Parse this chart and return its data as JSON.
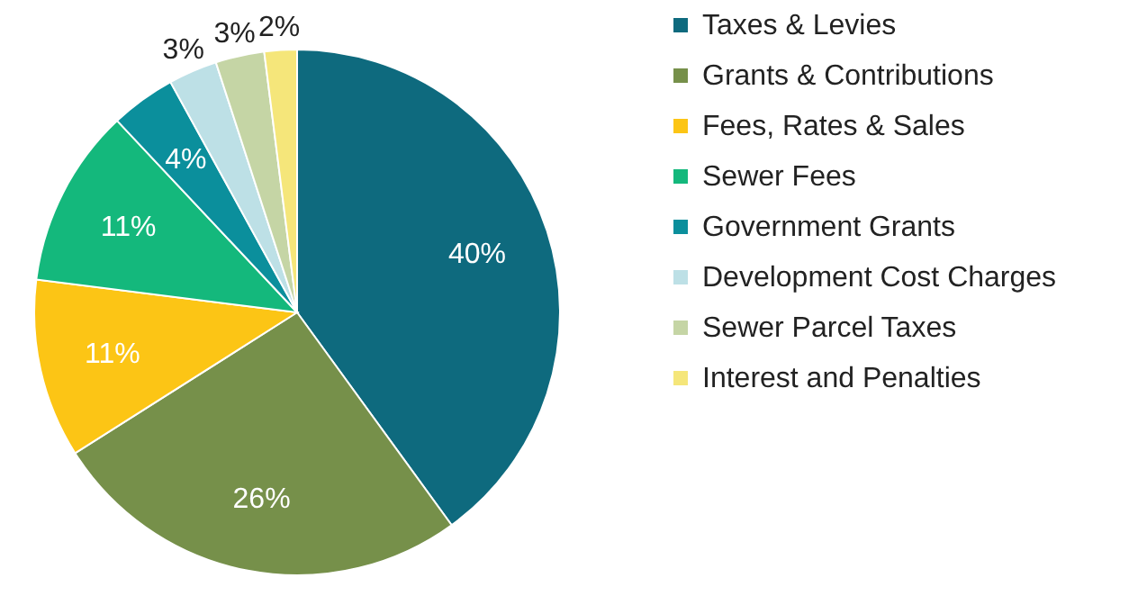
{
  "chart_data": {
    "type": "pie",
    "categories": [
      "Taxes & Levies",
      "Grants & Contributions",
      "Fees, Rates & Sales",
      "Sewer Fees",
      "Government Grants",
      "Development Cost Charges",
      "Sewer Parcel Taxes",
      "Interest and Penalties"
    ],
    "values": [
      40,
      26,
      11,
      11,
      4,
      3,
      3,
      2
    ],
    "colors": [
      "#0e6a7e",
      "#76904a",
      "#fcc515",
      "#14b87c",
      "#0b8f9c",
      "#bde0e6",
      "#c5d5a5",
      "#f5e67a"
    ],
    "value_labels": [
      "40%",
      "26%",
      "11%",
      "11%",
      "4%",
      "3%",
      "3%",
      "2%"
    ],
    "legend": "right"
  }
}
